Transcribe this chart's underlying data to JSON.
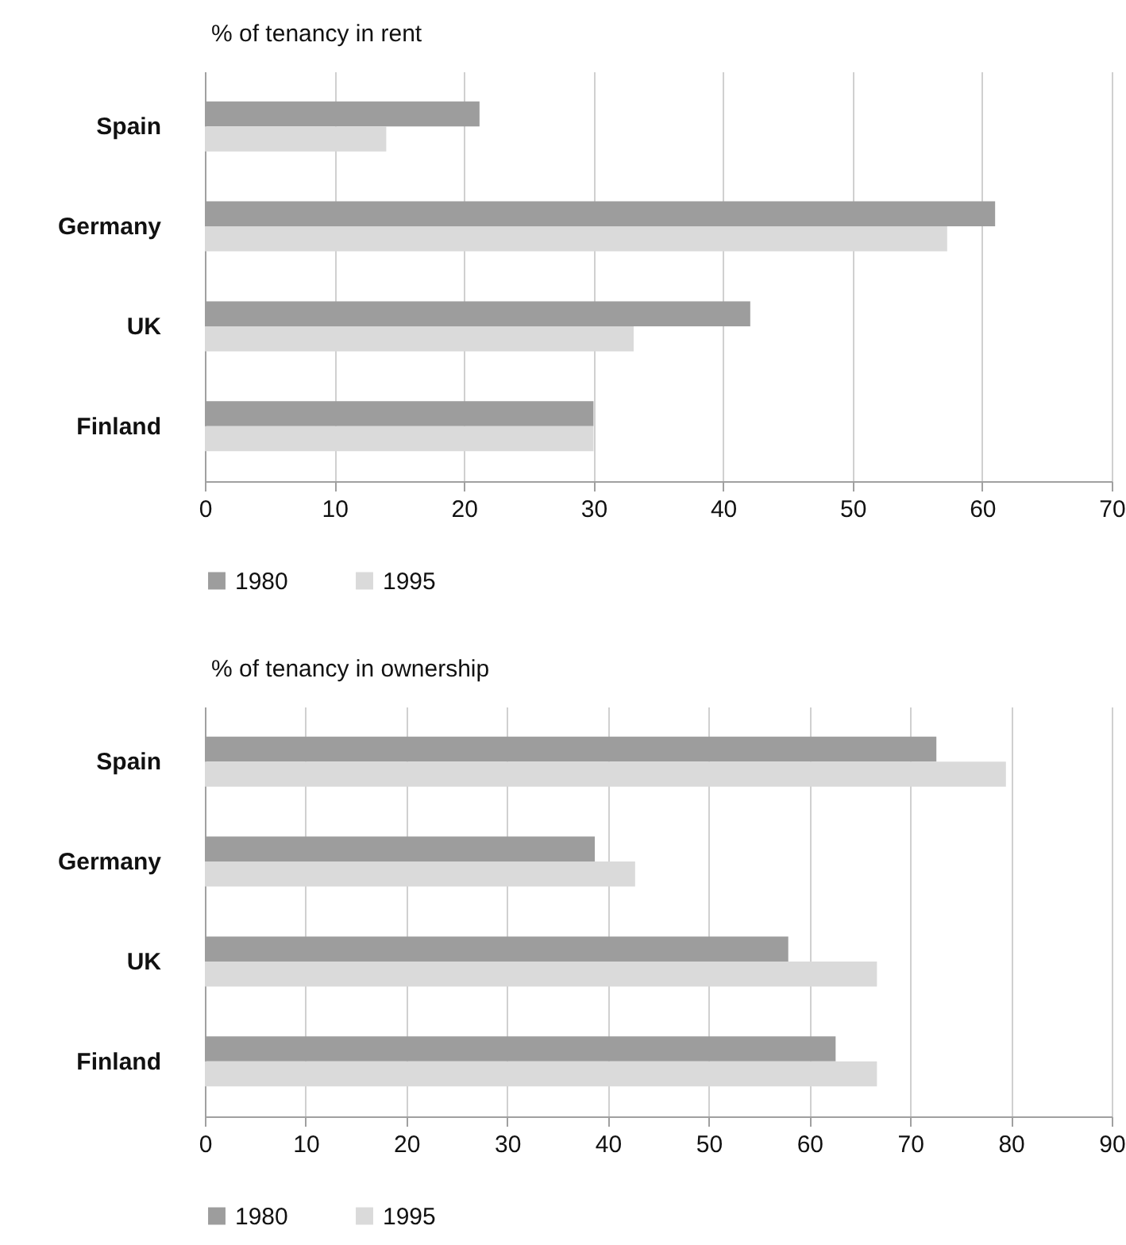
{
  "chart_data": [
    {
      "type": "bar",
      "orientation": "horizontal",
      "title": "% of tenancy in rent",
      "categories": [
        "Spain",
        "Germany",
        "UK",
        "Finland"
      ],
      "series": [
        {
          "name": "1980",
          "color": "#9d9d9d",
          "values": [
            21.2,
            61,
            42.1,
            30
          ]
        },
        {
          "name": "1995",
          "color": "#dadada",
          "values": [
            14,
            57.3,
            33.1,
            30
          ]
        }
      ],
      "xlim": [
        0,
        70
      ],
      "xticks": [
        0,
        10,
        20,
        30,
        40,
        50,
        60,
        70
      ],
      "grid": "x",
      "legend": "bottom"
    },
    {
      "type": "bar",
      "orientation": "horizontal",
      "title": "% of tenancy in ownership",
      "categories": [
        "Spain",
        "Germany",
        "UK",
        "Finland"
      ],
      "series": [
        {
          "name": "1980",
          "color": "#9d9d9d",
          "values": [
            72.6,
            38.7,
            57.9,
            62.6
          ]
        },
        {
          "name": "1995",
          "color": "#dadada",
          "values": [
            79.5,
            42.7,
            66.7,
            66.7
          ]
        }
      ],
      "xlim": [
        0,
        90
      ],
      "xticks": [
        0,
        10,
        20,
        30,
        40,
        50,
        60,
        70,
        80,
        90
      ],
      "grid": "x",
      "legend": "bottom"
    }
  ]
}
